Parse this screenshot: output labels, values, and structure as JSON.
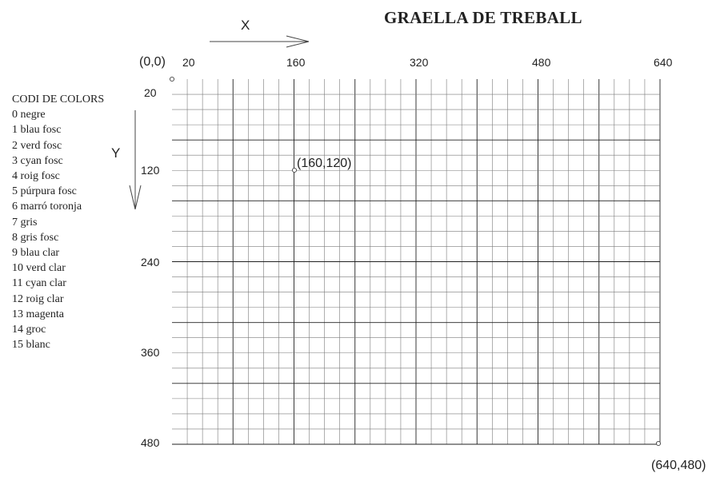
{
  "title": "GRAELLA DE TREBALL",
  "axes": {
    "x_name": "X",
    "y_name": "Y",
    "x_ticks": [
      "20",
      "160",
      "320",
      "480",
      "640"
    ],
    "y_ticks": [
      "20",
      "120",
      "240",
      "360",
      "480"
    ]
  },
  "points": {
    "origin": "(0,0)",
    "mid": "(160,120)",
    "end": "(640,480)"
  },
  "legend": {
    "title": "CODI DE COLORS",
    "items": [
      "0 negre",
      "1 blau fosc",
      "2 verd fosc",
      "3 cyan fosc",
      "4 roig fosc",
      "5 púrpura fosc",
      "6 marró toronja",
      "7 gris",
      "8 gris fosc",
      "9 blau clar",
      "10 verd clar",
      "11 cyan clar",
      "12 roig clar",
      "13 magenta",
      "14 groc",
      "15 blanc"
    ]
  },
  "grid": {
    "x_range": [
      0,
      640
    ],
    "y_range": [
      0,
      480
    ],
    "minor_step": 20,
    "major_step": 80,
    "line_color": "#7a7a7a",
    "major_line_color": "#222222"
  }
}
